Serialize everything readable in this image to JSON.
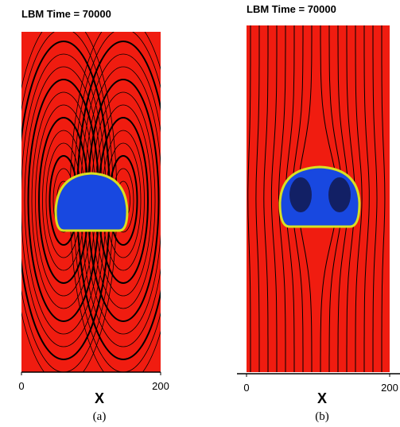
{
  "panels": [
    {
      "title": "LBM Time = 70000",
      "xlabel": "X",
      "xlim": [
        0,
        200
      ],
      "xticks": [
        0,
        200
      ],
      "caption": "(a)"
    },
    {
      "title": "LBM Time = 70000",
      "xlabel": "X",
      "xlim": [
        0,
        200
      ],
      "xticks": [
        0,
        200
      ],
      "caption": "(b)"
    }
  ]
}
